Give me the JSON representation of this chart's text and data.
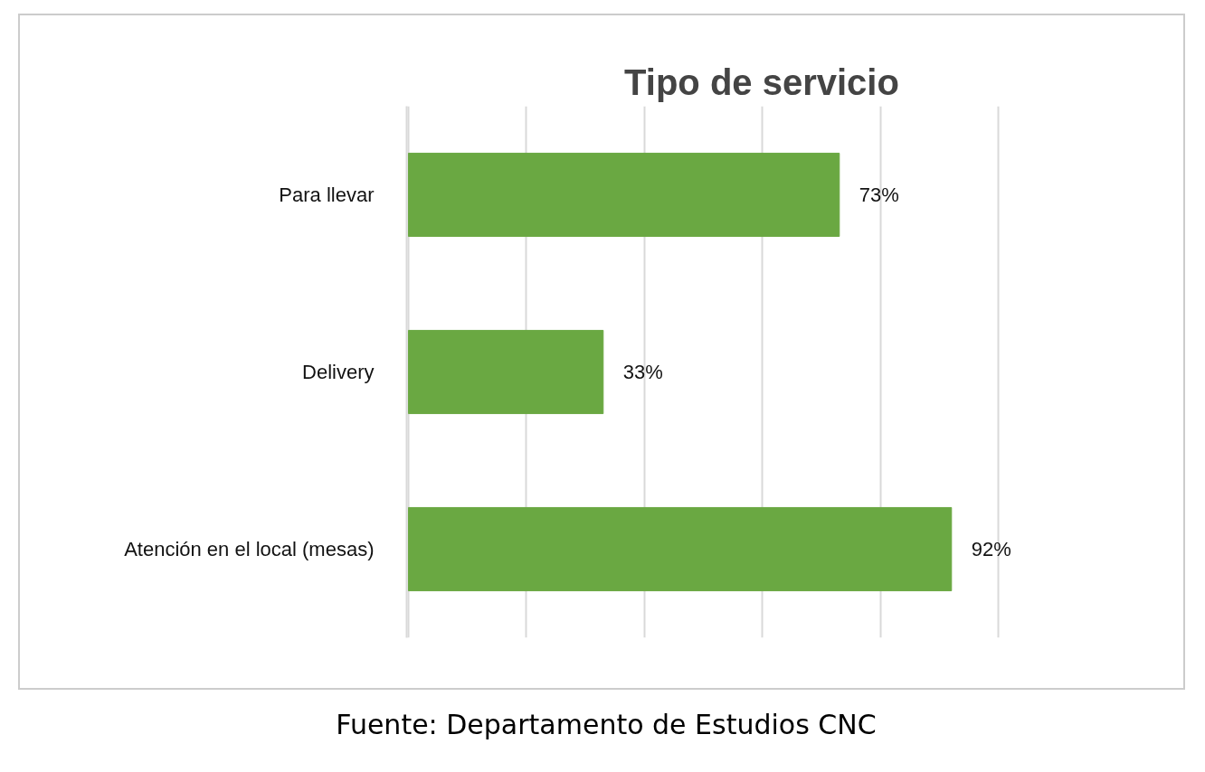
{
  "chart_data": {
    "type": "bar",
    "orientation": "horizontal",
    "title": "Tipo de servicio",
    "categories": [
      "Para llevar",
      "Delivery",
      "Atención en el local (mesas)"
    ],
    "values": [
      73,
      33,
      92
    ],
    "color": "#6aa842",
    "value_labels": [
      "73%",
      "33%",
      "92%"
    ],
    "xticks": [
      {
        "value": 0,
        "label": null
      },
      {
        "value": 20,
        "label": null
      },
      {
        "value": 40,
        "label": null
      },
      {
        "value": 60,
        "label": null
      },
      {
        "value": 80,
        "label": null
      },
      {
        "value": 100,
        "label": null
      }
    ],
    "tick_labels": "y",
    "grid": "x",
    "annotations": [
      "Fuente: Departamento de Estudios CNC"
    ]
  }
}
